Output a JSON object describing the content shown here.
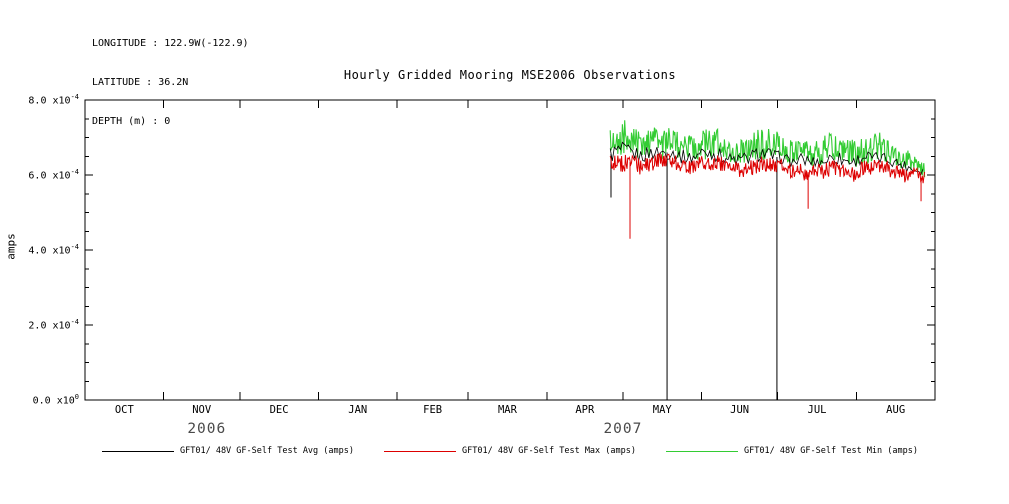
{
  "header": {
    "line1": "LONGITUDE : 122.9W(-122.9)",
    "line2": "LATITUDE : 36.2N",
    "line3": "DEPTH (m) : 0"
  },
  "title": "Hourly Gridded Mooring MSE2006 Observations",
  "ylabel": "amps",
  "chart_data": {
    "type": "line",
    "title": "Hourly Gridded Mooring MSE2006 Observations",
    "ylabel": "amps",
    "y_unit_scale": 0.0001,
    "ylim_units": [
      0,
      8
    ],
    "y_minor_step": 0.5,
    "yticks": [
      {
        "units": 0,
        "mantissa": "0.0 x10",
        "exp": "0"
      },
      {
        "units": 2,
        "mantissa": "2.0 x10",
        "exp": "-4"
      },
      {
        "units": 4,
        "mantissa": "4.0 x10",
        "exp": "-4"
      },
      {
        "units": 6,
        "mantissa": "6.0 x10",
        "exp": "-4"
      },
      {
        "units": 8,
        "mantissa": "8.0 x10",
        "exp": "-4"
      }
    ],
    "x_axis": {
      "domain_days": [
        0,
        335
      ],
      "month_boundaries": [
        0,
        31,
        61,
        92,
        123,
        151,
        182,
        212,
        243,
        273,
        304,
        335
      ],
      "month_labels": [
        "OCT",
        "NOV",
        "DEC",
        "JAN",
        "FEB",
        "MAR",
        "APR",
        "MAY",
        "JUN",
        "JUL",
        "AUG"
      ],
      "year_labels": [
        {
          "text": "2006",
          "anchor_day": 48
        },
        {
          "text": "2007",
          "anchor_day": 212
        }
      ]
    },
    "series": [
      {
        "name": "GFT01/ 48V GF-Self Test Avg (amps)",
        "color": "#000000",
        "envelope": [
          [
            207,
            6.3,
            6.8
          ],
          [
            211,
            6.4,
            6.9
          ],
          [
            215,
            6.4,
            6.8
          ],
          [
            219,
            6.3,
            6.7
          ],
          [
            223,
            6.4,
            6.8
          ],
          [
            227,
            6.4,
            6.8
          ],
          [
            231,
            6.4,
            6.8
          ],
          [
            235,
            6.3,
            6.7
          ],
          [
            239,
            6.3,
            6.6
          ],
          [
            243,
            6.4,
            6.8
          ],
          [
            247,
            6.4,
            6.8
          ],
          [
            251,
            6.3,
            6.7
          ],
          [
            255,
            6.2,
            6.6
          ],
          [
            259,
            6.2,
            6.6
          ],
          [
            263,
            6.3,
            6.7
          ],
          [
            267,
            6.4,
            6.8
          ],
          [
            271,
            6.3,
            6.7
          ],
          [
            275,
            6.3,
            6.6
          ],
          [
            279,
            6.2,
            6.5
          ],
          [
            283,
            6.2,
            6.6
          ],
          [
            287,
            6.2,
            6.5
          ],
          [
            291,
            6.2,
            6.5
          ],
          [
            295,
            6.3,
            6.7
          ],
          [
            299,
            6.2,
            6.6
          ],
          [
            303,
            6.2,
            6.5
          ],
          [
            307,
            6.3,
            6.7
          ],
          [
            311,
            6.3,
            6.6
          ],
          [
            315,
            6.3,
            6.6
          ],
          [
            319,
            6.2,
            6.5
          ],
          [
            323,
            6.1,
            6.4
          ],
          [
            327,
            6.0,
            6.3
          ],
          [
            331,
            6.0,
            6.2
          ]
        ],
        "spikes": [
          [
            207.3,
            5.4
          ],
          [
            229.4,
            0.0
          ],
          [
            272.7,
            0.0
          ]
        ]
      },
      {
        "name": "GFT01/ 48V GF-Self Test Max (amps)",
        "color": "#dd0000",
        "envelope": [
          [
            207,
            6.1,
            6.6
          ],
          [
            211,
            6.0,
            6.5
          ],
          [
            215,
            6.1,
            6.6
          ],
          [
            219,
            6.0,
            6.4
          ],
          [
            223,
            6.1,
            6.5
          ],
          [
            227,
            6.2,
            6.6
          ],
          [
            231,
            6.1,
            6.6
          ],
          [
            235,
            6.1,
            6.5
          ],
          [
            239,
            6.0,
            6.4
          ],
          [
            243,
            6.1,
            6.5
          ],
          [
            247,
            6.1,
            6.6
          ],
          [
            251,
            6.1,
            6.5
          ],
          [
            255,
            6.0,
            6.4
          ],
          [
            259,
            5.9,
            6.3
          ],
          [
            263,
            6.0,
            6.5
          ],
          [
            267,
            6.1,
            6.5
          ],
          [
            271,
            6.1,
            6.5
          ],
          [
            275,
            6.0,
            6.4
          ],
          [
            279,
            5.9,
            6.3
          ],
          [
            283,
            5.8,
            6.3
          ],
          [
            287,
            5.9,
            6.3
          ],
          [
            291,
            5.9,
            6.3
          ],
          [
            295,
            6.0,
            6.4
          ],
          [
            299,
            5.9,
            6.3
          ],
          [
            303,
            5.8,
            6.2
          ],
          [
            307,
            5.9,
            6.4
          ],
          [
            311,
            6.0,
            6.4
          ],
          [
            315,
            6.0,
            6.4
          ],
          [
            319,
            5.9,
            6.3
          ],
          [
            323,
            5.8,
            6.2
          ],
          [
            327,
            5.9,
            6.2
          ],
          [
            331,
            5.6,
            6.1
          ]
        ],
        "spikes": [
          [
            214.8,
            4.3
          ],
          [
            285.0,
            5.1
          ],
          [
            329.5,
            5.3
          ]
        ]
      },
      {
        "name": "GFT01/ 48V GF-Self Test Min (amps)",
        "color": "#33cc33",
        "envelope": [
          [
            207,
            6.6,
            7.2
          ],
          [
            210,
            6.5,
            7.5
          ],
          [
            213,
            6.6,
            7.7
          ],
          [
            216,
            6.5,
            7.3
          ],
          [
            220,
            6.4,
            7.1
          ],
          [
            224,
            6.5,
            7.3
          ],
          [
            228,
            6.4,
            7.2
          ],
          [
            232,
            6.4,
            7.3
          ],
          [
            236,
            6.5,
            7.2
          ],
          [
            240,
            6.4,
            7.0
          ],
          [
            244,
            6.4,
            7.2
          ],
          [
            248,
            6.5,
            7.3
          ],
          [
            252,
            6.4,
            7.1
          ],
          [
            256,
            6.3,
            6.9
          ],
          [
            260,
            6.3,
            7.0
          ],
          [
            264,
            6.4,
            7.2
          ],
          [
            268,
            6.4,
            7.3
          ],
          [
            272,
            6.4,
            7.2
          ],
          [
            276,
            6.3,
            7.0
          ],
          [
            280,
            6.2,
            6.9
          ],
          [
            284,
            6.3,
            7.0
          ],
          [
            288,
            6.2,
            6.9
          ],
          [
            292,
            6.3,
            7.1
          ],
          [
            296,
            6.4,
            7.2
          ],
          [
            300,
            6.3,
            7.0
          ],
          [
            304,
            6.2,
            6.9
          ],
          [
            308,
            6.3,
            7.1
          ],
          [
            312,
            6.4,
            7.2
          ],
          [
            316,
            6.3,
            7.0
          ],
          [
            320,
            6.2,
            6.8
          ],
          [
            324,
            6.1,
            6.7
          ],
          [
            328,
            6.0,
            6.5
          ],
          [
            331,
            5.9,
            6.3
          ]
        ],
        "spikes": []
      }
    ]
  }
}
